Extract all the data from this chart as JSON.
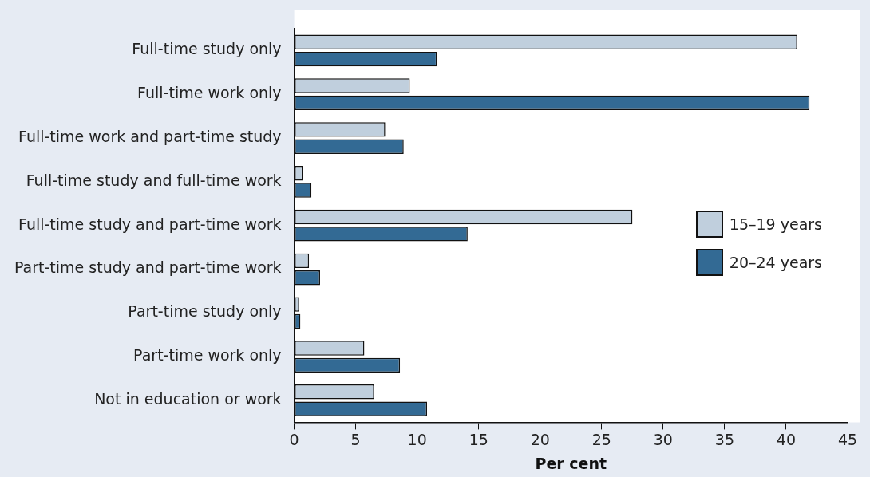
{
  "chart_data": {
    "type": "bar",
    "orientation": "horizontal",
    "xlabel": "Per cent",
    "categories": [
      "Full-time study only",
      "Full-time work only",
      "Full-time work and part-time study",
      "Full-time study and full-time work",
      "Full-time study and part-time work",
      "Part-time study and part-time work",
      "Part-time study only",
      "Part-time work only",
      "Not in education or work"
    ],
    "series": [
      {
        "name": "15–19 years",
        "color": "#c0cfdd",
        "values": [
          40.9,
          9.4,
          7.4,
          0.7,
          27.5,
          1.2,
          0.4,
          5.7,
          6.5
        ]
      },
      {
        "name": "20–24 years",
        "color": "#336a94",
        "values": [
          11.6,
          41.9,
          8.9,
          1.4,
          14.1,
          2.1,
          0.5,
          8.6,
          10.8
        ]
      }
    ],
    "xlim": [
      0,
      45
    ],
    "xticks": [
      0,
      5,
      10,
      15,
      20,
      25,
      30,
      35,
      40,
      45
    ],
    "legend": "right"
  }
}
